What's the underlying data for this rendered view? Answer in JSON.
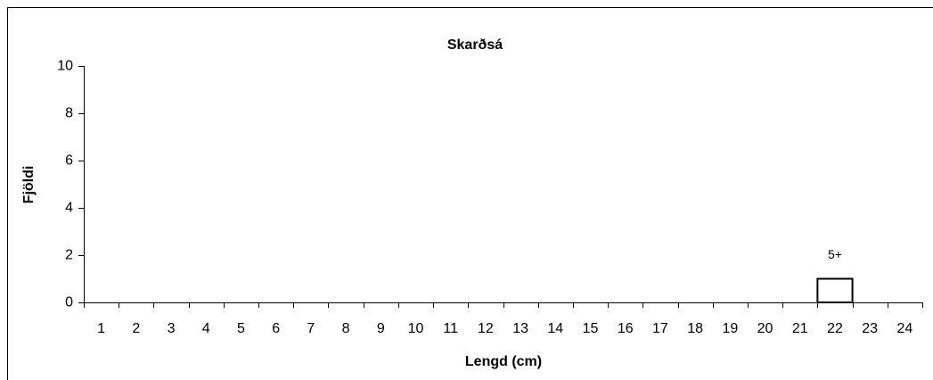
{
  "chart_data": {
    "type": "bar",
    "title": "Skarðsá",
    "x_label": "Lengd (cm)",
    "y_label": "Fjöldi",
    "categories": [
      "1",
      "2",
      "3",
      "4",
      "5",
      "6",
      "7",
      "8",
      "9",
      "10",
      "11",
      "12",
      "13",
      "14",
      "15",
      "16",
      "17",
      "18",
      "19",
      "20",
      "21",
      "22",
      "23",
      "24"
    ],
    "series": [
      {
        "name": "5+",
        "color": "#ffffff",
        "values": [
          0,
          0,
          0,
          0,
          0,
          0,
          0,
          0,
          0,
          0,
          0,
          0,
          0,
          0,
          0,
          0,
          0,
          0,
          0,
          0,
          0,
          1,
          0,
          0
        ]
      }
    ],
    "ylim": [
      0,
      10
    ],
    "yticks": [
      0,
      2,
      4,
      6,
      8,
      10
    ],
    "grid": false
  }
}
